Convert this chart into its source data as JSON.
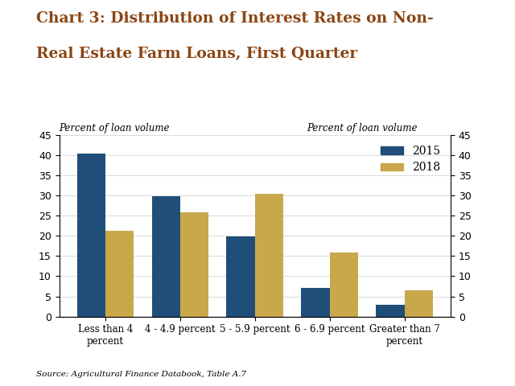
{
  "title_line1": "Chart 3: Distribution of Interest Rates on Non-",
  "title_line2": "Real Estate Farm Loans, First Quarter",
  "title_color": "#8B4513",
  "categories": [
    "Less than 4\npercent",
    "4 - 4.9 percent",
    "5 - 5.9 percent",
    "6 - 6.9 percent",
    "Greater than 7\npercent"
  ],
  "values_2015": [
    40.5,
    29.8,
    19.8,
    7.2,
    3.0
  ],
  "values_2018": [
    21.2,
    25.8,
    30.5,
    15.8,
    6.5
  ],
  "color_2015": "#1F4E79",
  "color_2018": "#C9A84C",
  "ylim": [
    0,
    45
  ],
  "yticks": [
    0,
    5,
    10,
    15,
    20,
    25,
    30,
    35,
    40,
    45
  ],
  "ylabel_left": "Percent of loan volume",
  "ylabel_right": "Percent of loan volume",
  "legend_labels": [
    "2015",
    "2018"
  ],
  "source_text": "Source: Agricultural Finance Databook, Table A.7",
  "bar_width": 0.38,
  "background_color": "#FFFFFF"
}
